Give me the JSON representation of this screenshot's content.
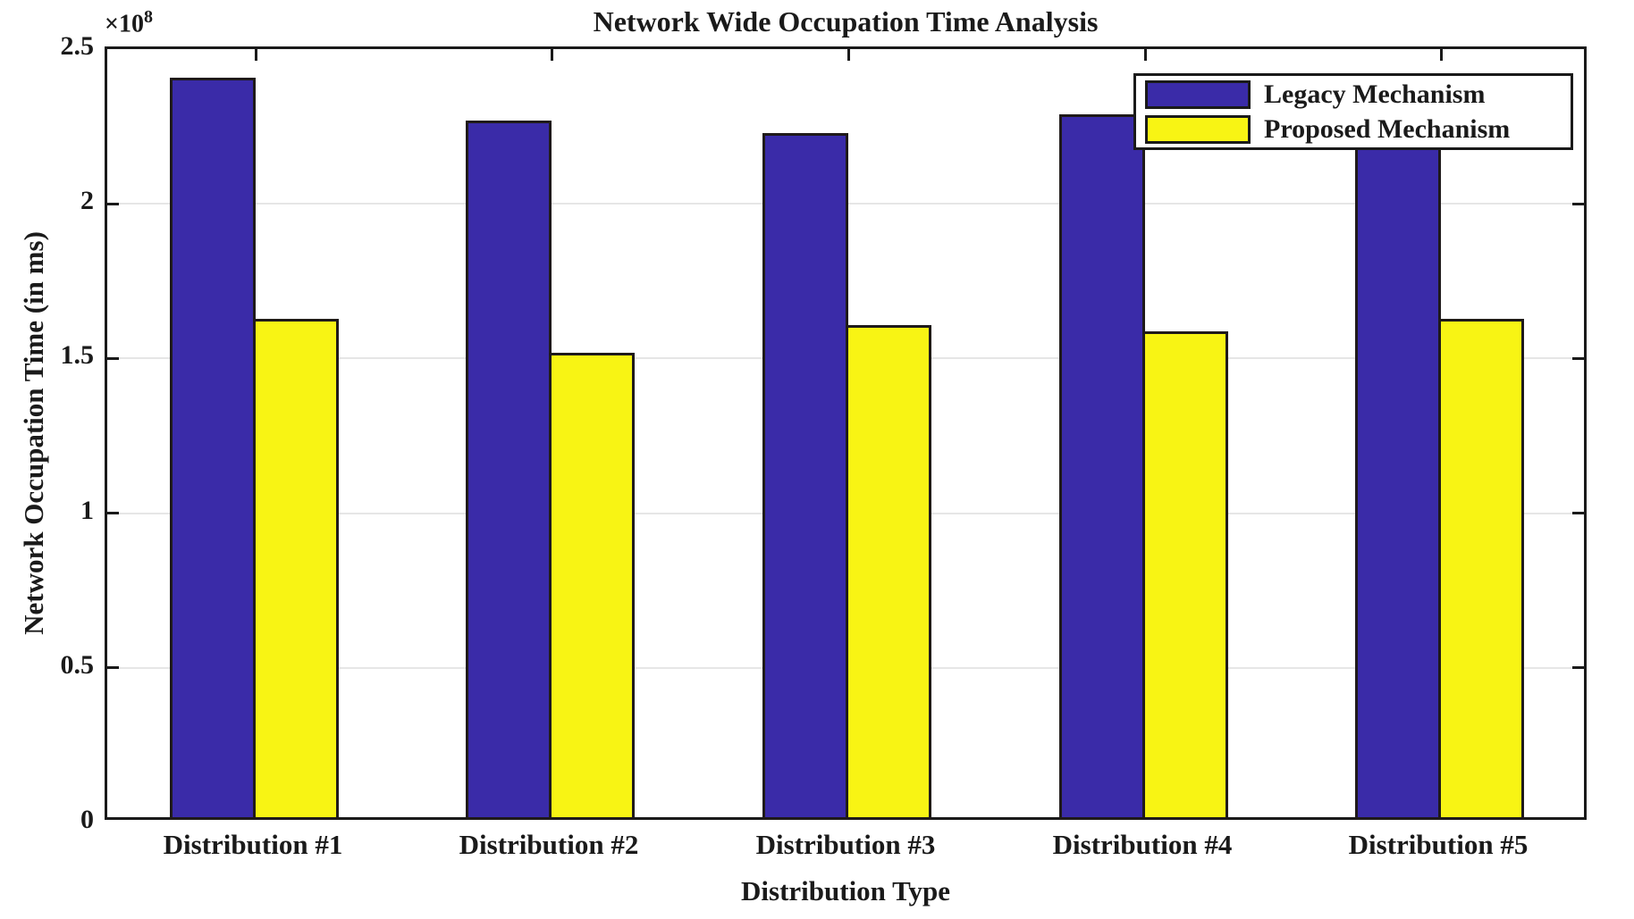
{
  "figure": {
    "background": "#ffffff",
    "axis_color": "#1a1a1a",
    "grid_color": "#e6e6e6"
  },
  "chart_data": {
    "type": "bar",
    "title": "Network Wide Occupation Time Analysis",
    "xlabel": "Distribution Type",
    "ylabel": "Network Occupation Time (in ms)",
    "y_axis_multiplier_base": "×10",
    "y_axis_multiplier_exponent": "8",
    "categories": [
      "Distribution #1",
      "Distribution #2",
      "Distribution #3",
      "Distribution #4",
      "Distribution #5"
    ],
    "series": [
      {
        "name": "Legacy Mechanism",
        "color": "#3a2ba8",
        "values": [
          240000000,
          226000000,
          222000000,
          228000000,
          225000000
        ]
      },
      {
        "name": "Proposed Mechanism",
        "color": "#f8f414",
        "values": [
          162000000,
          151000000,
          160000000,
          158000000,
          162000000
        ]
      }
    ],
    "ylim": [
      0,
      250000000
    ],
    "yticks": [
      {
        "value": 0,
        "label": "0"
      },
      {
        "value": 50000000,
        "label": "0.5"
      },
      {
        "value": 100000000,
        "label": "1"
      },
      {
        "value": 150000000,
        "label": "1.5"
      },
      {
        "value": 200000000,
        "label": "2"
      },
      {
        "value": 250000000,
        "label": "2.5"
      }
    ],
    "grid": "horizontal-only",
    "legend_position": "northeast",
    "notes": "Top edge of Legacy bar for Distribution #5 is occluded by the legend box; its value is estimated."
  }
}
